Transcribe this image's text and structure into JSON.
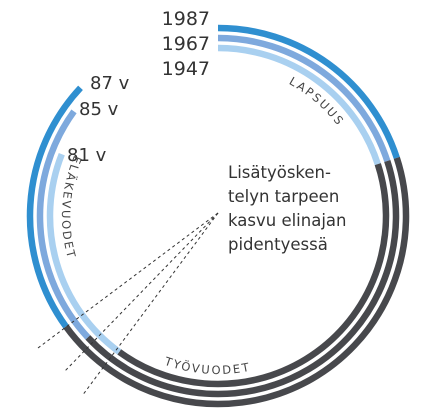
{
  "cohorts": [
    {
      "year": "1947",
      "age": "81 v"
    },
    {
      "year": "1967",
      "age": "85 v"
    },
    {
      "year": "1987",
      "age": "87 v"
    }
  ],
  "phases": {
    "childhood": "LAPSUUS",
    "work": "TYÖVUODET",
    "retirement": "ELÄKEVUODET"
  },
  "note": [
    "Lisätyösken-",
    "telyn tarpeen",
    "kasvu elinajan",
    "pidentyessä"
  ]
}
